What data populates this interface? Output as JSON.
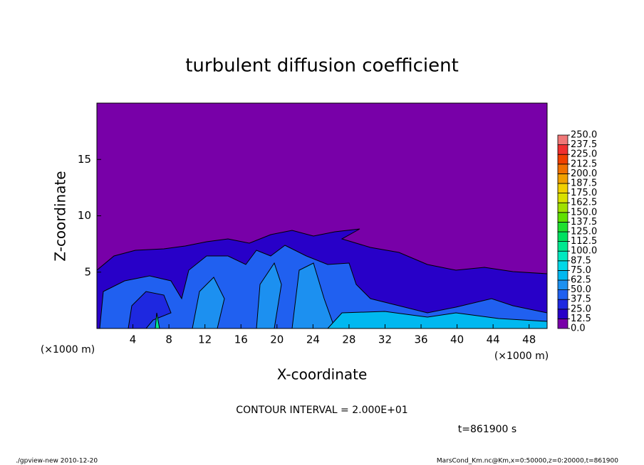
{
  "chart_data": {
    "type": "contour",
    "title": "turbulent diffusion coefficient",
    "xlabel": "X-coordinate",
    "ylabel": "Z-coordinate",
    "x_unit": "(×1000 m)",
    "xlim": [
      0,
      50
    ],
    "xticks": [
      4,
      8,
      12,
      16,
      20,
      24,
      28,
      32,
      36,
      40,
      44,
      48
    ],
    "ylim": [
      0,
      20
    ],
    "yticks": [
      5,
      10,
      15
    ],
    "levels": [
      {
        "value": 0,
        "label": "0.0"
      },
      12.5,
      {
        "value": 25,
        "label": "25.0"
      },
      37.5,
      {
        "value": 50,
        "label": "50.0"
      },
      62.5,
      {
        "value": 75,
        "label": "75.0"
      },
      87.5,
      {
        "value": 100,
        "label": "100.0"
      },
      112.5,
      {
        "value": 125,
        "label": "125.0"
      },
      137.5,
      {
        "value": 150,
        "label": "150.0"
      },
      162.5,
      {
        "value": 175,
        "label": "175.0"
      },
      187.5,
      {
        "value": 200,
        "label": "200.0"
      },
      212.5,
      {
        "value": 225,
        "label": "225.0"
      },
      237.5,
      {
        "value": 250,
        "label": "250.0"
      }
    ],
    "colors": [
      "#7800a8",
      "#2800c8",
      "#1e28e0",
      "#2060f0",
      "#1c90f0",
      "#00b8f0",
      "#00d8e8",
      "#00e8c0",
      "#00e890",
      "#00e060",
      "#20e030",
      "#60e000",
      "#a0e000",
      "#d8e000",
      "#f0d000",
      "#f0a000",
      "#f07000",
      "#f04000",
      "#f03030",
      "#f07878"
    ],
    "contour_interval": "CONTOUR INTERVAL = 2.000E+01",
    "time_label": "t=861900 s",
    "footer_left": "./gpview-new  2010-12-20",
    "footer_right": "MarsCond_Km.nc@Km,x=0:50000,z=0:20000,t=861900"
  }
}
